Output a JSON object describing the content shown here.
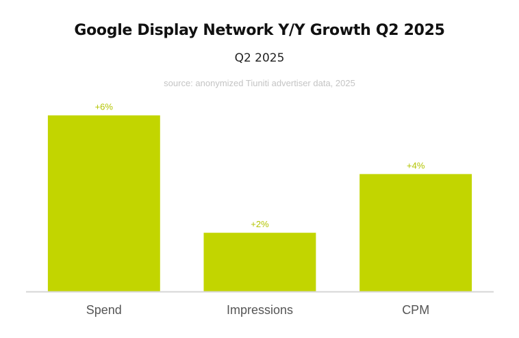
{
  "chart_data": {
    "type": "bar",
    "title": "Google Display Network Y/Y Growth Q2 2025",
    "subtitle": "Q2 2025",
    "source": "source: anonymized Tiuniti advertiser data, 2025",
    "categories": [
      "Spend",
      "Impressions",
      "CPM"
    ],
    "values": [
      6,
      2,
      4
    ],
    "data_labels": [
      "+6%",
      "+2%",
      "+4%"
    ],
    "ylim": [
      0,
      6.55
    ],
    "grid": false,
    "legend": "none",
    "bar_color": "#c2d500",
    "label_color": "#b3c400",
    "axis_color": "#d6d6d6",
    "tick_color": "#555555"
  }
}
